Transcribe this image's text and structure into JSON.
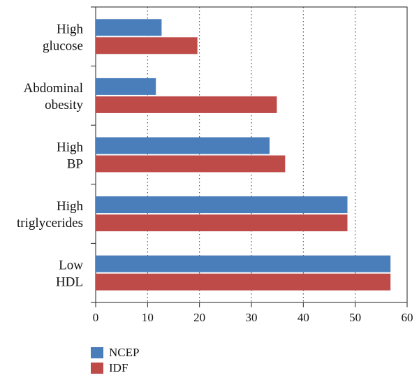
{
  "chart_data": {
    "type": "bar",
    "orientation": "horizontal",
    "categories": [
      [
        "High",
        "glucose"
      ],
      [
        "Abdominal",
        "obesity"
      ],
      [
        "High",
        "BP"
      ],
      [
        "High",
        "triglycerides"
      ],
      [
        "Low",
        "HDL"
      ]
    ],
    "series": [
      {
        "name": "NCEP",
        "color": "#4a7ebb",
        "values": [
          12.7,
          11.6,
          33.5,
          48.5,
          56.8
        ]
      },
      {
        "name": "IDF",
        "color": "#be4b48",
        "values": [
          19.6,
          34.9,
          36.5,
          48.5,
          56.8
        ]
      }
    ],
    "xlim": [
      0,
      60
    ],
    "xticks": [
      0,
      10,
      20,
      30,
      40,
      50,
      60
    ],
    "grid": "vertical-dotted",
    "legend_position": "bottom-left"
  }
}
